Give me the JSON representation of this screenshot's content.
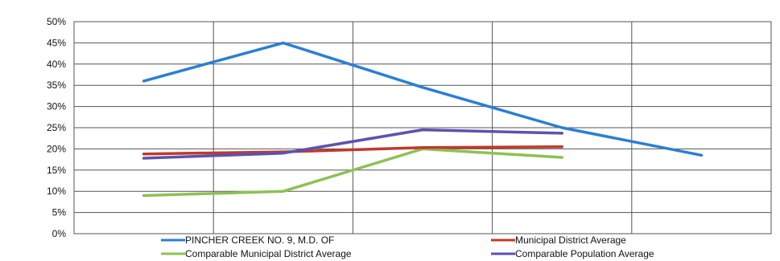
{
  "chart_data": {
    "type": "line",
    "title": "",
    "xlabel": "",
    "ylabel": "",
    "ylim": [
      0,
      50
    ],
    "y_ticks": [
      "0%",
      "5%",
      "10%",
      "15%",
      "20%",
      "25%",
      "30%",
      "35%",
      "40%",
      "45%",
      "50%"
    ],
    "grid": true,
    "categories": [
      "",
      "",
      "",
      "",
      ""
    ],
    "legend": {
      "placement": "bottom"
    },
    "series": [
      {
        "name": "PINCHER CREEK NO. 9, M.D. OF",
        "color": "#2a7fd4",
        "values": [
          36,
          45,
          34.5,
          25,
          18.5
        ]
      },
      {
        "name": "Municipal District Average",
        "color": "#c0392b",
        "values": [
          18.8,
          19.3,
          20.3,
          20.5,
          null
        ]
      },
      {
        "name": "Comparable Municipal District Average",
        "color": "#8dc153",
        "values": [
          9,
          10,
          20,
          18,
          null
        ]
      },
      {
        "name": "Comparable Population Average",
        "color": "#5b52b0",
        "values": [
          17.8,
          19,
          24.5,
          23.7,
          null
        ]
      }
    ]
  }
}
